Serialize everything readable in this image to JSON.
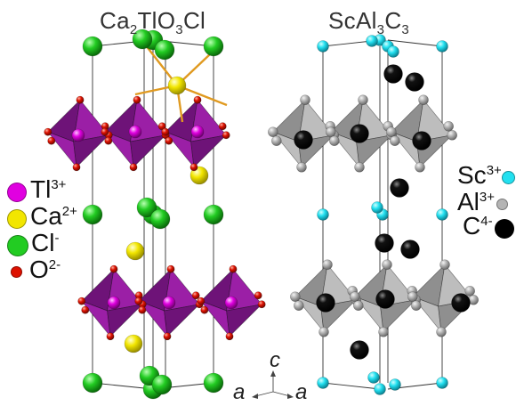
{
  "titles": {
    "left": {
      "base": "Ca",
      "sub1": "2",
      "mid1": "TlO",
      "sub2": "3",
      "end": "Cl"
    },
    "right": {
      "base": "ScAl",
      "sub1": "3",
      "mid1": "C",
      "sub2": "3"
    }
  },
  "legend_left": [
    {
      "symbol": "Tl",
      "charge": "3+",
      "color": "#e000e0"
    },
    {
      "symbol": "Ca",
      "charge": "2+",
      "color": "#f2e600"
    },
    {
      "symbol": "Cl",
      "charge": "-",
      "color": "#22cc22"
    },
    {
      "symbol": "O",
      "charge": "2-",
      "color": "#dd1100"
    }
  ],
  "legend_right": [
    {
      "symbol": "Sc",
      "charge": "3+",
      "color": "#22e0f0"
    },
    {
      "symbol": "Al",
      "charge": "3+",
      "color": "#b4b4b4"
    },
    {
      "symbol": "C",
      "charge": "4-",
      "color": "#000000"
    }
  ],
  "axes": {
    "c": "c",
    "a_left": "a",
    "a_right": "a"
  },
  "colors": {
    "octa_left": "#9b1fa6",
    "octa_left_dark": "#6e1378",
    "octa_right": "#bdbdbd",
    "octa_right_dark": "#8f8f8f",
    "bond": "#e09a20",
    "cell_line": "#333333"
  }
}
